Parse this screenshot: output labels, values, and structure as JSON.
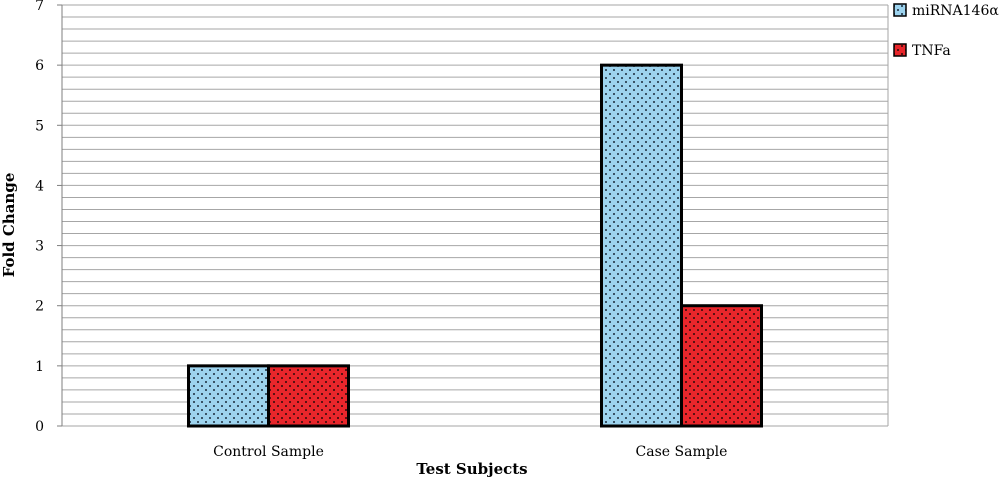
{
  "chart_data": {
    "type": "bar",
    "title": "",
    "xlabel": "Test Subjects",
    "ylabel": "Fold Change",
    "categories": [
      "Control Sample",
      "Case Sample"
    ],
    "series": [
      {
        "name": "miRNA146α",
        "values": [
          1,
          6
        ],
        "color": "#9dd3ee",
        "dot_color": "#1a2a3a"
      },
      {
        "name": "TNFa",
        "values": [
          1,
          2
        ],
        "color": "#e8262b",
        "dot_color": "#2a0a0a"
      }
    ],
    "ylim": [
      0,
      7
    ],
    "yticks": [
      0,
      1,
      2,
      3,
      4,
      5,
      6,
      7
    ],
    "grid": true,
    "minor_gridlines_per_unit": 5,
    "legend_position": "right",
    "bar_outline_color": "#000000",
    "gridline_color": "#a6a6a6"
  }
}
